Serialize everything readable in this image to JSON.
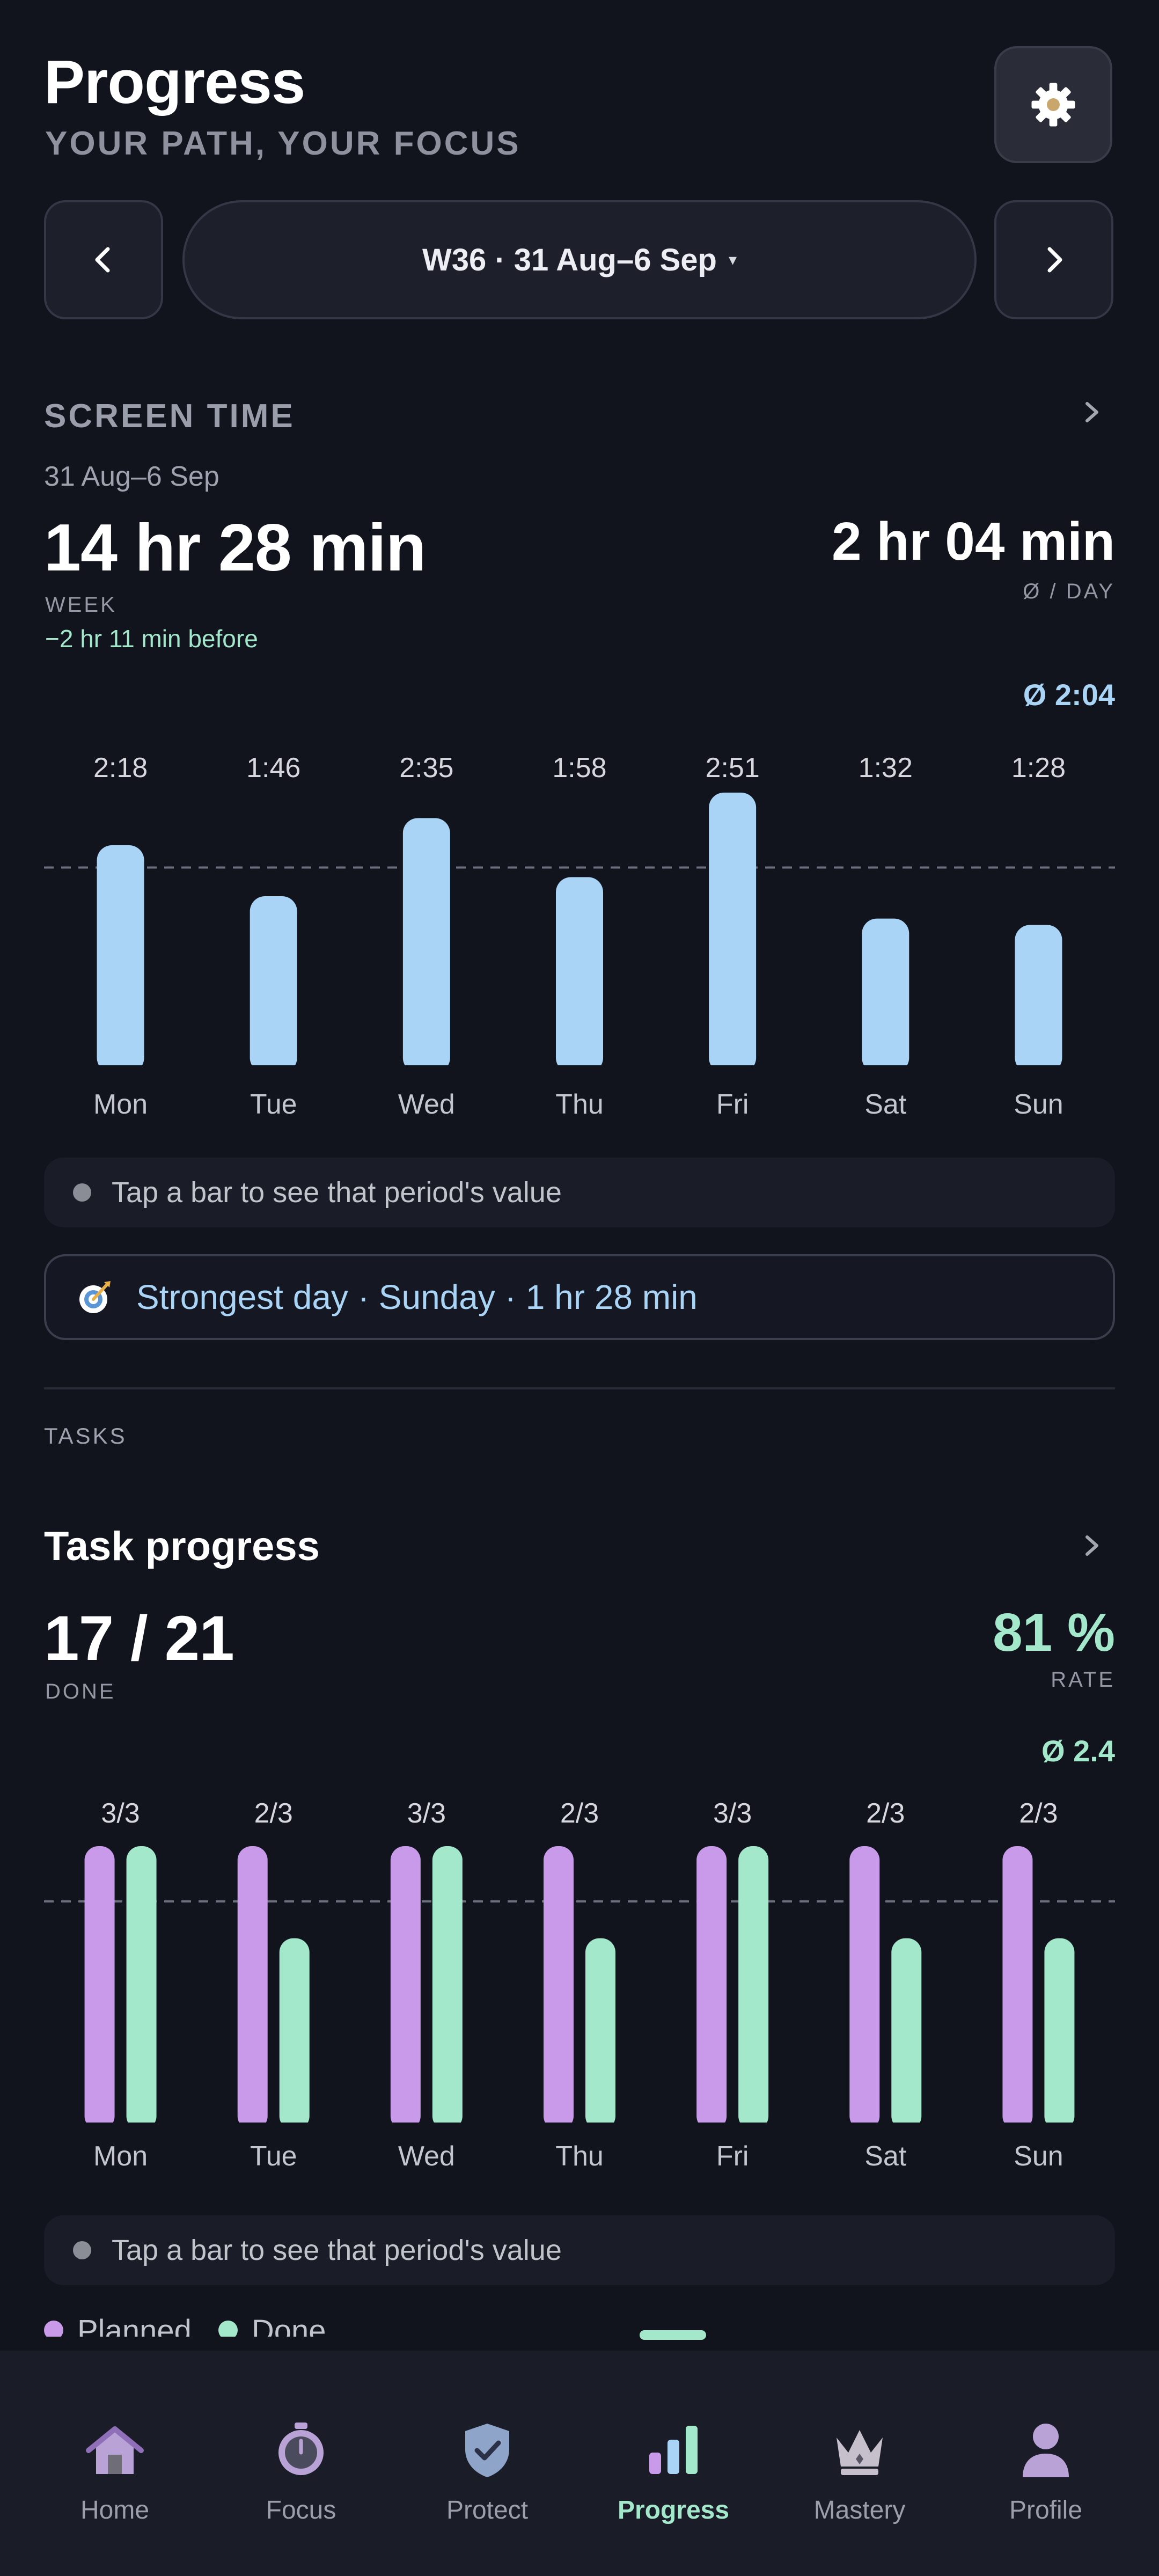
{
  "header": {
    "title": "Progress",
    "subtitle": "YOUR PATH, YOUR FOCUS",
    "week_label": "W36 · 31 Aug–6 Sep",
    "week_caret": "▾"
  },
  "screen_time": {
    "section_title": "SCREEN TIME",
    "date_range": "31 Aug–6 Sep",
    "total": "14 hr 28 min",
    "total_label": "WEEK",
    "delta": "−2 hr 11 min before",
    "avg": "2 hr 04 min",
    "avg_label": "Ø / DAY",
    "avg_marker": "Ø 2:04",
    "hint": "Tap a bar to see that period's value",
    "strongest": "Strongest day · Sunday · 1 hr 28 min"
  },
  "tasks": {
    "section_label": "TASKS",
    "title": "Task progress",
    "done": "17 / 21",
    "done_label": "DONE",
    "rate": "81 %",
    "rate_label": "RATE",
    "avg_marker": "Ø 2.4",
    "hint": "Tap a bar to see that period's value",
    "legend": [
      {
        "label": "Planned",
        "color": "#c89ae9"
      },
      {
        "label": "Done",
        "color": "#a4e8cc"
      }
    ]
  },
  "chart_data": [
    {
      "type": "bar",
      "categories": [
        "Mon",
        "Tue",
        "Wed",
        "Thu",
        "Fri",
        "Sat",
        "Sun"
      ],
      "value_labels": [
        "2:18",
        "1:46",
        "2:35",
        "1:58",
        "2:51",
        "1:32",
        "1:28"
      ],
      "values": [
        138,
        106,
        155,
        118,
        171,
        92,
        88
      ],
      "average": 124,
      "ylim": [
        0,
        175
      ],
      "color": "#a9d4f6"
    },
    {
      "type": "bar",
      "categories": [
        "Mon",
        "Tue",
        "Wed",
        "Thu",
        "Fri",
        "Sat",
        "Sun"
      ],
      "value_labels": [
        "3/3",
        "2/3",
        "3/3",
        "2/3",
        "3/3",
        "2/3",
        "2/3"
      ],
      "series": [
        {
          "name": "Planned",
          "values": [
            3,
            3,
            3,
            3,
            3,
            3,
            3
          ],
          "color": "#c89ae9"
        },
        {
          "name": "Done",
          "values": [
            3,
            2,
            3,
            2,
            3,
            2,
            2
          ],
          "color": "#a4e8cc"
        }
      ],
      "average": 2.4,
      "ylim": [
        0,
        3
      ]
    }
  ],
  "nav": {
    "tabs": [
      {
        "label": "Home",
        "icon": "home-icon"
      },
      {
        "label": "Focus",
        "icon": "stopwatch-icon"
      },
      {
        "label": "Protect",
        "icon": "shield-icon"
      },
      {
        "label": "Progress",
        "icon": "bar-chart-icon"
      },
      {
        "label": "Mastery",
        "icon": "crown-icon"
      },
      {
        "label": "Profile",
        "icon": "person-icon"
      }
    ],
    "active": "Progress"
  }
}
